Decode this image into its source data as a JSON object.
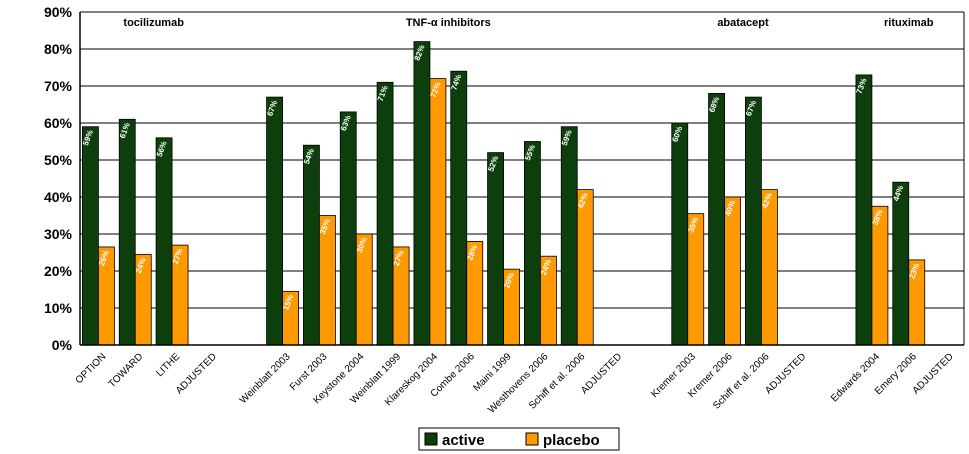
{
  "chart_data": {
    "type": "bar",
    "ylim": [
      0,
      90
    ],
    "y_ticks": [
      "0%",
      "10%",
      "20%",
      "30%",
      "40%",
      "50%",
      "60%",
      "70%",
      "80%",
      "90%"
    ],
    "grid": true,
    "legend_position": "bottom-center",
    "groups": [
      {
        "name": "tocilizumab",
        "start": 0,
        "end": 3
      },
      {
        "name": "TNF-α inhibitors",
        "start": 5,
        "end": 14
      },
      {
        "name": "abatacept",
        "start": 16,
        "end": 19
      },
      {
        "name": "rituximab",
        "start": 21,
        "end": 23
      }
    ],
    "categories": [
      "OPTION",
      "TOWARD",
      "LITHE",
      "ADJUSTED",
      "",
      "Weinblatt 2003",
      "Furst 2003",
      "Keystone 2004",
      "Weinblatt 1999",
      "Klareskog 2004",
      "Combe 2006",
      "Maini 1999",
      "Westhovens 2006",
      "Schiff et al. 2006",
      "ADJUSTED",
      "",
      "Kremer 2003",
      "Kremer 2006",
      "Schiff et al. 2006",
      "ADJUSTED",
      "",
      "Edwards 2004",
      "Emery 2006",
      "ADJUSTED"
    ],
    "series": [
      {
        "name": "active",
        "color": "#0d3f0d",
        "values": [
          59,
          61,
          56,
          null,
          null,
          67,
          54,
          63,
          71,
          82,
          74,
          52,
          55,
          59,
          null,
          null,
          60,
          68,
          67,
          null,
          null,
          73,
          44,
          null
        ],
        "labels": [
          "59%",
          "61%",
          "56%",
          "",
          "",
          "67%",
          "54%",
          "63%",
          "71%",
          "82%",
          "74%",
          "52%",
          "55%",
          "59%",
          "",
          "",
          "60%",
          "68%",
          "67%",
          "",
          "",
          "73%",
          "44%",
          ""
        ]
      },
      {
        "name": "placebo",
        "color": "#ff9900",
        "values": [
          26.5,
          24.5,
          27,
          null,
          null,
          14.5,
          35,
          30,
          26.5,
          72,
          28,
          20.5,
          24,
          42,
          null,
          null,
          35.5,
          40,
          42,
          null,
          null,
          37.5,
          23,
          null
        ],
        "labels": [
          "26%",
          "24%",
          "27%",
          "",
          "",
          "15%",
          "35%",
          "30%",
          "27%",
          "72%",
          "28%",
          "20%",
          "24%",
          "42%",
          "",
          "",
          "35%",
          "40%",
          "42%",
          "",
          "",
          "38%",
          "23%",
          ""
        ]
      }
    ]
  }
}
